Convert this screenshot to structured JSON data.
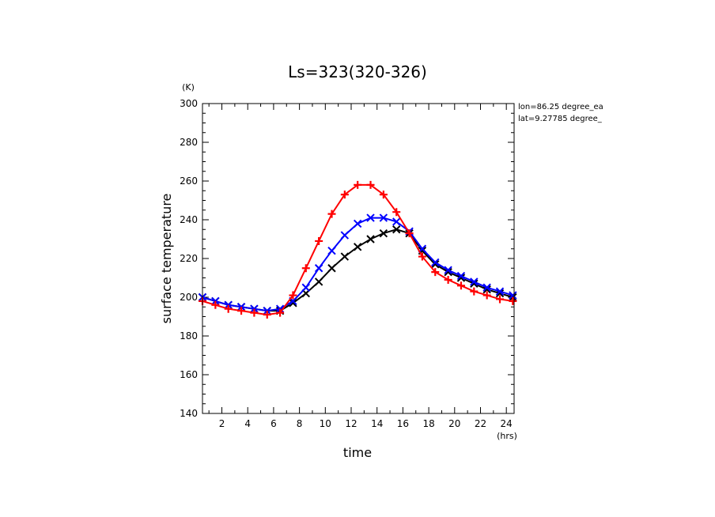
{
  "chart_data": {
    "type": "line",
    "title": "Ls=323(320-326)",
    "xlabel": "time",
    "ylabel": "surface temperature",
    "x_unit": "(hrs)",
    "y_unit": "(K)",
    "xlim": [
      0.5,
      24.6
    ],
    "ylim": [
      140,
      300
    ],
    "xticks": [
      2,
      4,
      6,
      8,
      10,
      12,
      14,
      16,
      18,
      20,
      22,
      24
    ],
    "yticks": [
      140,
      160,
      180,
      200,
      220,
      240,
      260,
      280,
      300
    ],
    "grid": false,
    "annotations": [
      "lon=86.25 degree_ea",
      "lat=9.27785 degree_"
    ],
    "x": [
      0.5,
      1.5,
      2.5,
      3.5,
      4.5,
      5.5,
      6.5,
      7.5,
      8.5,
      9.5,
      10.5,
      11.5,
      12.5,
      13.5,
      14.5,
      15.5,
      16.5,
      17.5,
      18.5,
      19.5,
      20.5,
      21.5,
      22.5,
      23.5,
      24.5
    ],
    "series": [
      {
        "color": "#000000",
        "marker": "x",
        "values": [
          200,
          198,
          196,
          195,
          194,
          193,
          193,
          197,
          202,
          208,
          215,
          221,
          226,
          230,
          233,
          235,
          233,
          224,
          217,
          213,
          210,
          207,
          204,
          202,
          200
        ]
      },
      {
        "color": "#0000ff",
        "marker": "x",
        "values": [
          200,
          198,
          196,
          195,
          194,
          193,
          194,
          198,
          205,
          215,
          224,
          232,
          238,
          241,
          241,
          239,
          234,
          225,
          218,
          214,
          211,
          208,
          205,
          203,
          201
        ]
      },
      {
        "color": "#ff0000",
        "marker": "plus",
        "values": [
          198,
          196,
          194,
          193,
          192,
          191,
          192,
          201,
          215,
          229,
          243,
          253,
          258,
          258,
          253,
          244,
          233,
          221,
          213,
          209,
          206,
          203,
          201,
          199,
          198
        ]
      }
    ]
  }
}
